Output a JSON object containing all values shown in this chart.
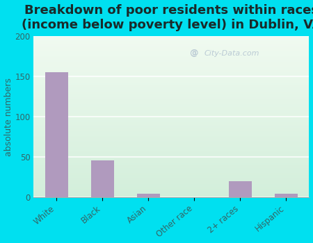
{
  "title": "Breakdown of poor residents within races\n(income below poverty level) in Dublin, VA",
  "categories": [
    "White",
    "Black",
    "Asian",
    "Other race",
    "2+ races",
    "Hispanic"
  ],
  "values": [
    155,
    46,
    4,
    0,
    20,
    4
  ],
  "bar_color": "#b09abe",
  "background_outer": "#00e0f0",
  "background_inner_gradient_top": "#f0faf0",
  "background_inner_gradient_bottom": "#d8f0dc",
  "ylabel": "absolute numbers",
  "ylim": [
    0,
    200
  ],
  "yticks": [
    0,
    50,
    100,
    150,
    200
  ],
  "title_fontsize": 13,
  "axis_label_fontsize": 9,
  "tick_fontsize": 8.5,
  "watermark": "City-Data.com",
  "grid_color": "#c8e8cc",
  "tick_color": "#336666",
  "title_color": "#1a2a2a"
}
